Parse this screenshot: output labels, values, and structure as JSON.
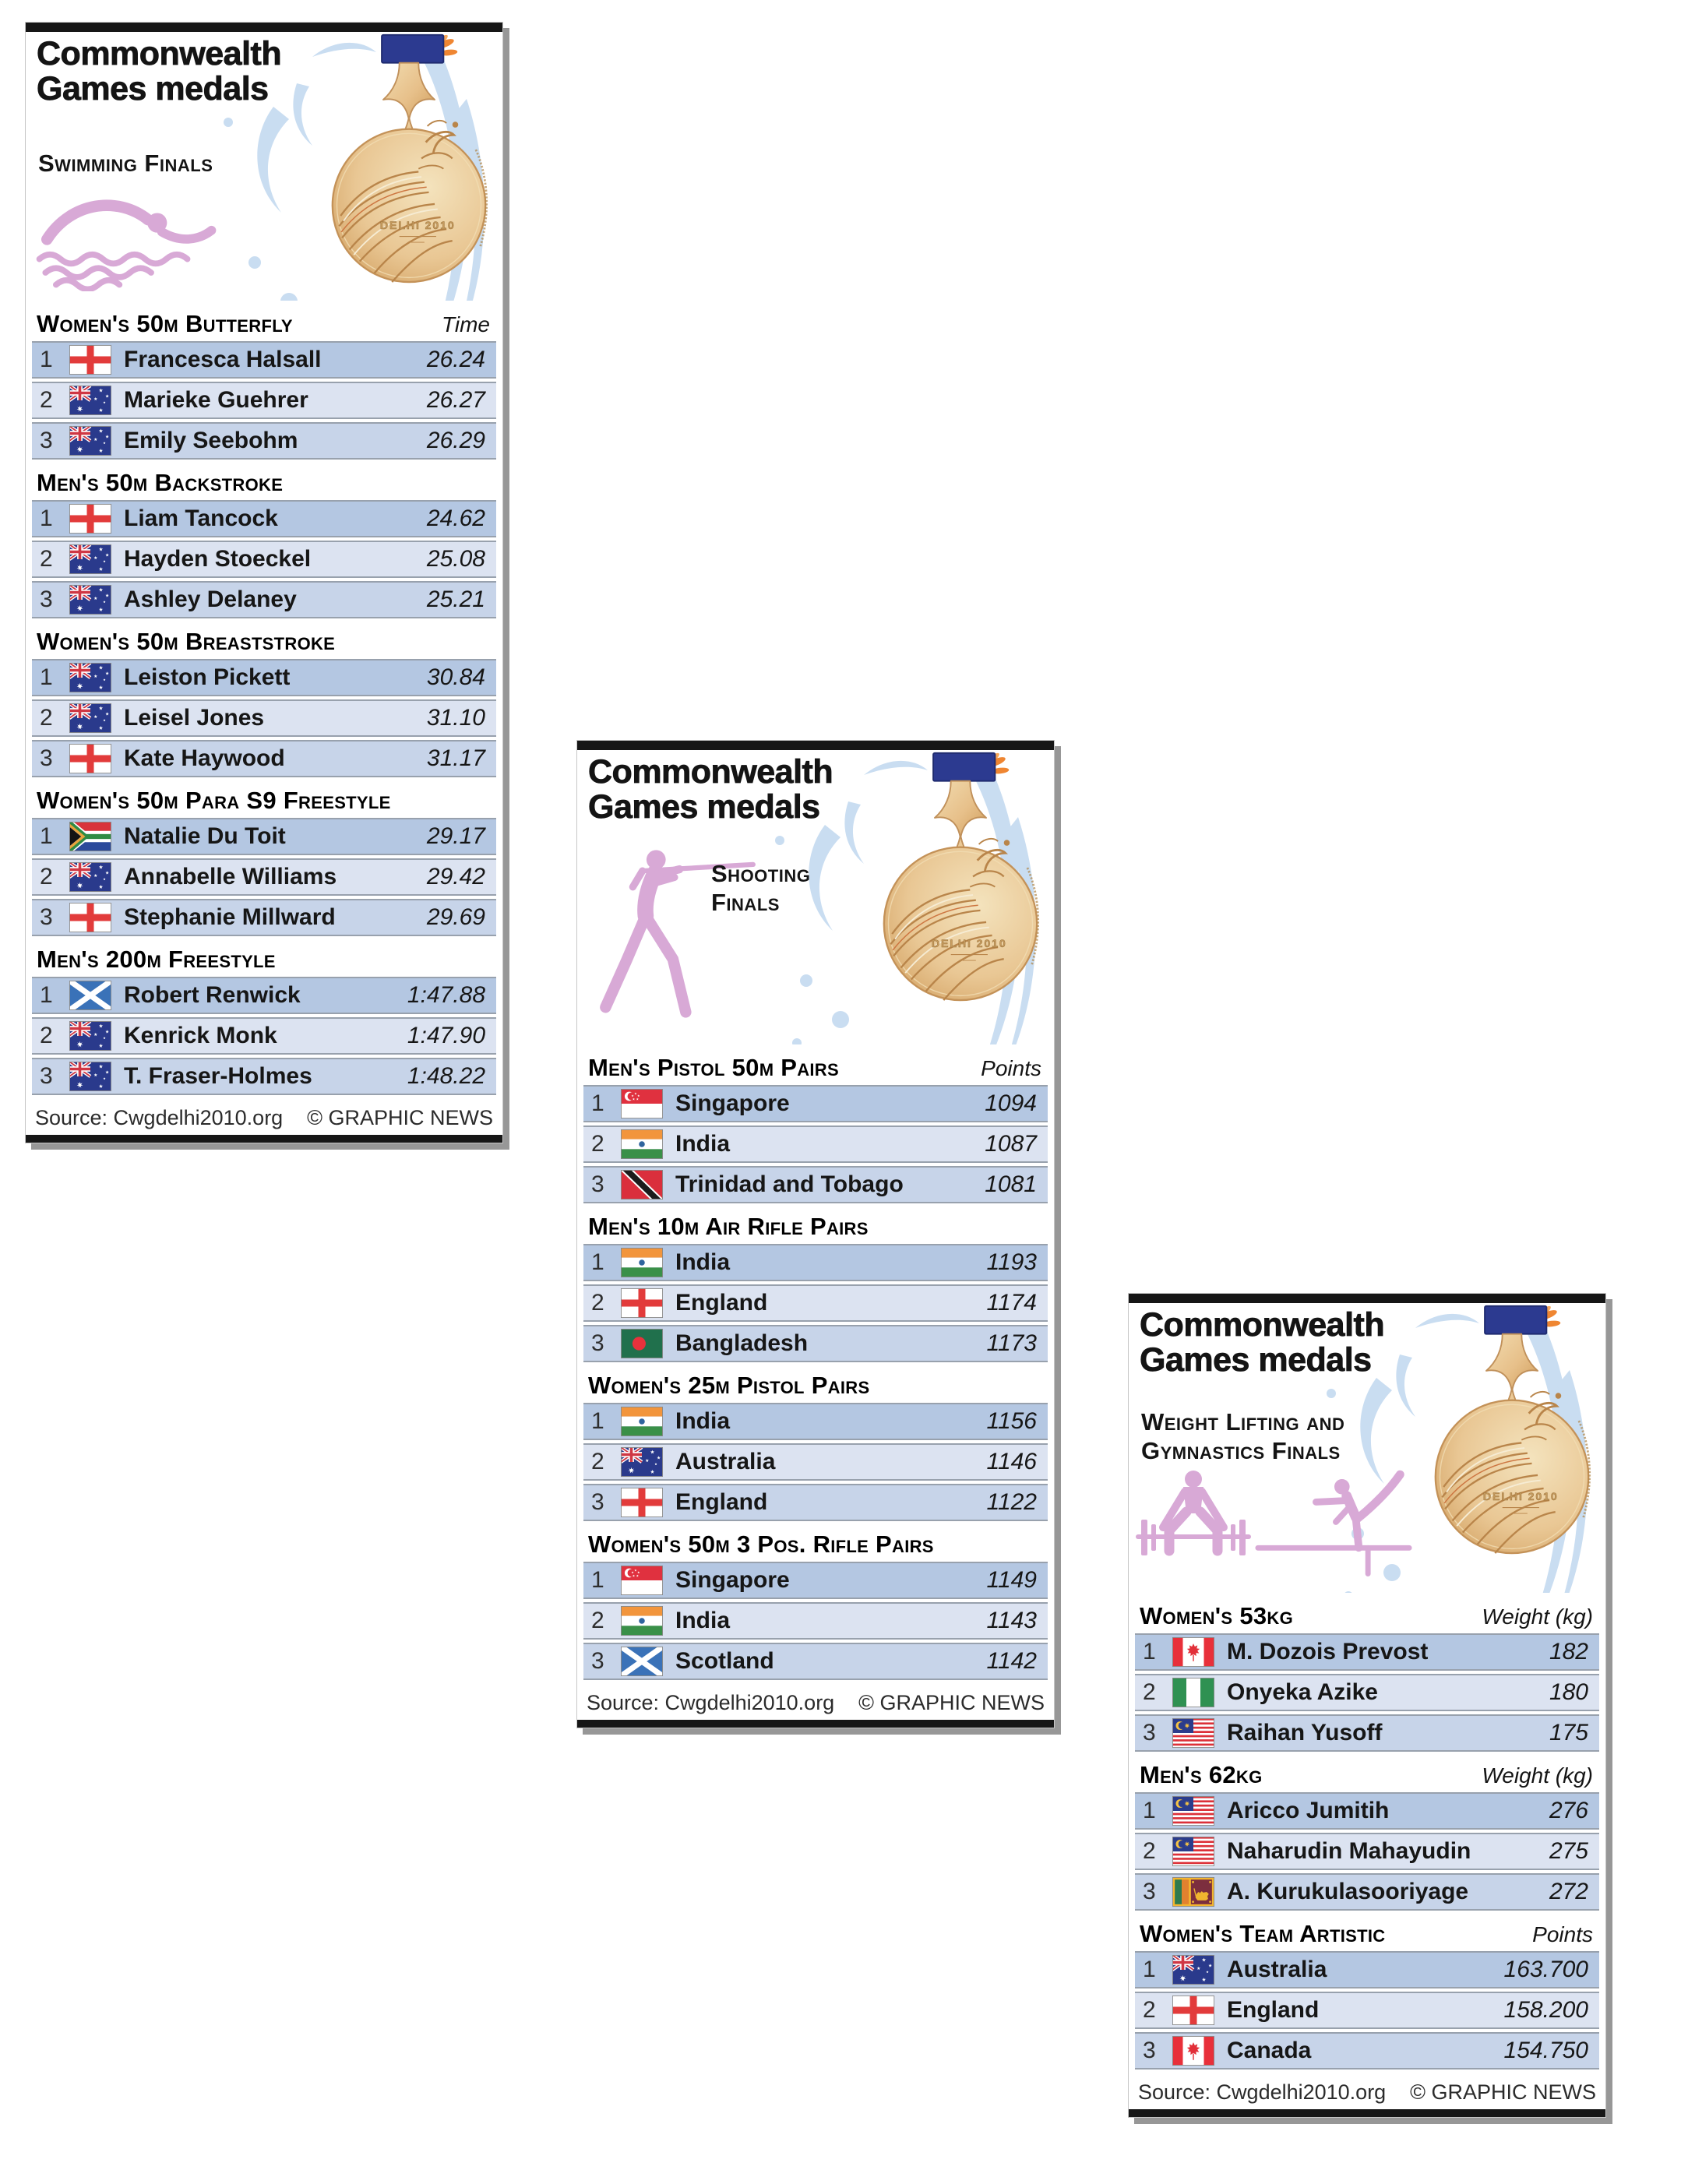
{
  "colors": {
    "row_gold": "#b4c7e2",
    "row_silver": "#dce3f1",
    "row_bronze": "#c7d4e9",
    "separator_gray": "#98a1ad",
    "bar_black": "#161616",
    "splash_blue": "#c9ddf1",
    "icon_pink": "#d8a9d6",
    "ribbon_navy": "#2c3a90",
    "medal_gold": "#e7c08a"
  },
  "panels": [
    {
      "id": "swimming-finals",
      "title": "Commonwealth\nGames medals",
      "subtitle": "Swimming Finals",
      "icons": [
        "swimmer-icon"
      ],
      "source": "Source: Cwgdelhi2010.org",
      "credit": "© GRAPHIC NEWS",
      "sections": [
        {
          "title": "Women's 50m Butterfly",
          "unit": "Time",
          "rows": [
            {
              "rank": "1",
              "flag": "england",
              "name": "Francesca Halsall",
              "value": "26.24"
            },
            {
              "rank": "2",
              "flag": "australia",
              "name": "Marieke Guehrer",
              "value": "26.27"
            },
            {
              "rank": "3",
              "flag": "australia",
              "name": "Emily Seebohm",
              "value": "26.29"
            }
          ]
        },
        {
          "title": "Men's 50m Backstroke",
          "unit": "",
          "rows": [
            {
              "rank": "1",
              "flag": "england",
              "name": "Liam Tancock",
              "value": "24.62"
            },
            {
              "rank": "2",
              "flag": "australia",
              "name": "Hayden Stoeckel",
              "value": "25.08"
            },
            {
              "rank": "3",
              "flag": "australia",
              "name": "Ashley Delaney",
              "value": "25.21"
            }
          ]
        },
        {
          "title": "Women's 50m Breaststroke",
          "unit": "",
          "rows": [
            {
              "rank": "1",
              "flag": "australia",
              "name": "Leiston Pickett",
              "value": "30.84"
            },
            {
              "rank": "2",
              "flag": "australia",
              "name": "Leisel Jones",
              "value": "31.10"
            },
            {
              "rank": "3",
              "flag": "england",
              "name": "Kate Haywood",
              "value": "31.17"
            }
          ]
        },
        {
          "title": "Women's 50m Para S9 Freestyle",
          "unit": "",
          "rows": [
            {
              "rank": "1",
              "flag": "south-africa",
              "name": "Natalie Du Toit",
              "value": "29.17"
            },
            {
              "rank": "2",
              "flag": "australia",
              "name": "Annabelle Williams",
              "value": "29.42"
            },
            {
              "rank": "3",
              "flag": "england",
              "name": "Stephanie Millward",
              "value": "29.69"
            }
          ]
        },
        {
          "title": "Men's 200m Freestyle",
          "unit": "",
          "rows": [
            {
              "rank": "1",
              "flag": "scotland",
              "name": "Robert Renwick",
              "value": "1:47.88"
            },
            {
              "rank": "2",
              "flag": "australia",
              "name": "Kenrick Monk",
              "value": "1:47.90"
            },
            {
              "rank": "3",
              "flag": "australia",
              "name": "T. Fraser-Holmes",
              "value": "1:48.22"
            }
          ]
        }
      ]
    },
    {
      "id": "shooting-finals",
      "title": "Commonwealth\nGames medals",
      "subtitle": "Shooting\nFinals",
      "icons": [
        "shooter-icon"
      ],
      "source": "Source: Cwgdelhi2010.org",
      "credit": "© GRAPHIC NEWS",
      "sections": [
        {
          "title": "Men's Pistol 50m Pairs",
          "unit": "Points",
          "rows": [
            {
              "rank": "1",
              "flag": "singapore",
              "name": "Singapore",
              "value": "1094"
            },
            {
              "rank": "2",
              "flag": "india",
              "name": "India",
              "value": "1087"
            },
            {
              "rank": "3",
              "flag": "trinidad-tobago",
              "name": "Trinidad and Tobago",
              "value": "1081"
            }
          ]
        },
        {
          "title": "Men's 10m Air Rifle Pairs",
          "unit": "",
          "rows": [
            {
              "rank": "1",
              "flag": "india",
              "name": "India",
              "value": "1193"
            },
            {
              "rank": "2",
              "flag": "england",
              "name": "England",
              "value": "1174"
            },
            {
              "rank": "3",
              "flag": "bangladesh",
              "name": "Bangladesh",
              "value": "1173"
            }
          ]
        },
        {
          "title": "Women's 25m Pistol Pairs",
          "unit": "",
          "rows": [
            {
              "rank": "1",
              "flag": "india",
              "name": "India",
              "value": "1156"
            },
            {
              "rank": "2",
              "flag": "australia",
              "name": "Australia",
              "value": "1146"
            },
            {
              "rank": "3",
              "flag": "england",
              "name": "England",
              "value": "1122"
            }
          ]
        },
        {
          "title": "Women's 50m 3 Pos. Rifle Pairs",
          "unit": "",
          "rows": [
            {
              "rank": "1",
              "flag": "singapore",
              "name": "Singapore",
              "value": "1149"
            },
            {
              "rank": "2",
              "flag": "india",
              "name": "India",
              "value": "1143"
            },
            {
              "rank": "3",
              "flag": "scotland",
              "name": "Scotland",
              "value": "1142"
            }
          ]
        }
      ]
    },
    {
      "id": "weightlifting-gymnastics-finals",
      "title": "Commonwealth\nGames medals",
      "subtitle": "Weight Lifting and\nGymnastics Finals",
      "icons": [
        "weightlifter-icon",
        "gymnast-icon"
      ],
      "source": "Source: Cwgdelhi2010.org",
      "credit": "© GRAPHIC NEWS",
      "sections": [
        {
          "title": "Women's 53kg",
          "unit": "Weight (kg)",
          "rows": [
            {
              "rank": "1",
              "flag": "canada",
              "name": "M. Dozois Prevost",
              "value": "182"
            },
            {
              "rank": "2",
              "flag": "nigeria",
              "name": "Onyeka Azike",
              "value": "180"
            },
            {
              "rank": "3",
              "flag": "malaysia",
              "name": "Raihan Yusoff",
              "value": "175"
            }
          ]
        },
        {
          "title": "Men's 62kg",
          "unit": "Weight (kg)",
          "rows": [
            {
              "rank": "1",
              "flag": "malaysia",
              "name": "Aricco Jumitih",
              "value": "276"
            },
            {
              "rank": "2",
              "flag": "malaysia",
              "name": "Naharudin Mahayudin",
              "value": "275"
            },
            {
              "rank": "3",
              "flag": "sri-lanka",
              "name": "A. Kurukulasooriyage",
              "value": "272"
            }
          ]
        },
        {
          "title": "Women's Team Artistic",
          "unit": "Points",
          "rows": [
            {
              "rank": "1",
              "flag": "australia",
              "name": "Australia",
              "value": "163.700"
            },
            {
              "rank": "2",
              "flag": "england",
              "name": "England",
              "value": "158.200"
            },
            {
              "rank": "3",
              "flag": "canada",
              "name": "Canada",
              "value": "154.750"
            }
          ]
        }
      ]
    }
  ]
}
